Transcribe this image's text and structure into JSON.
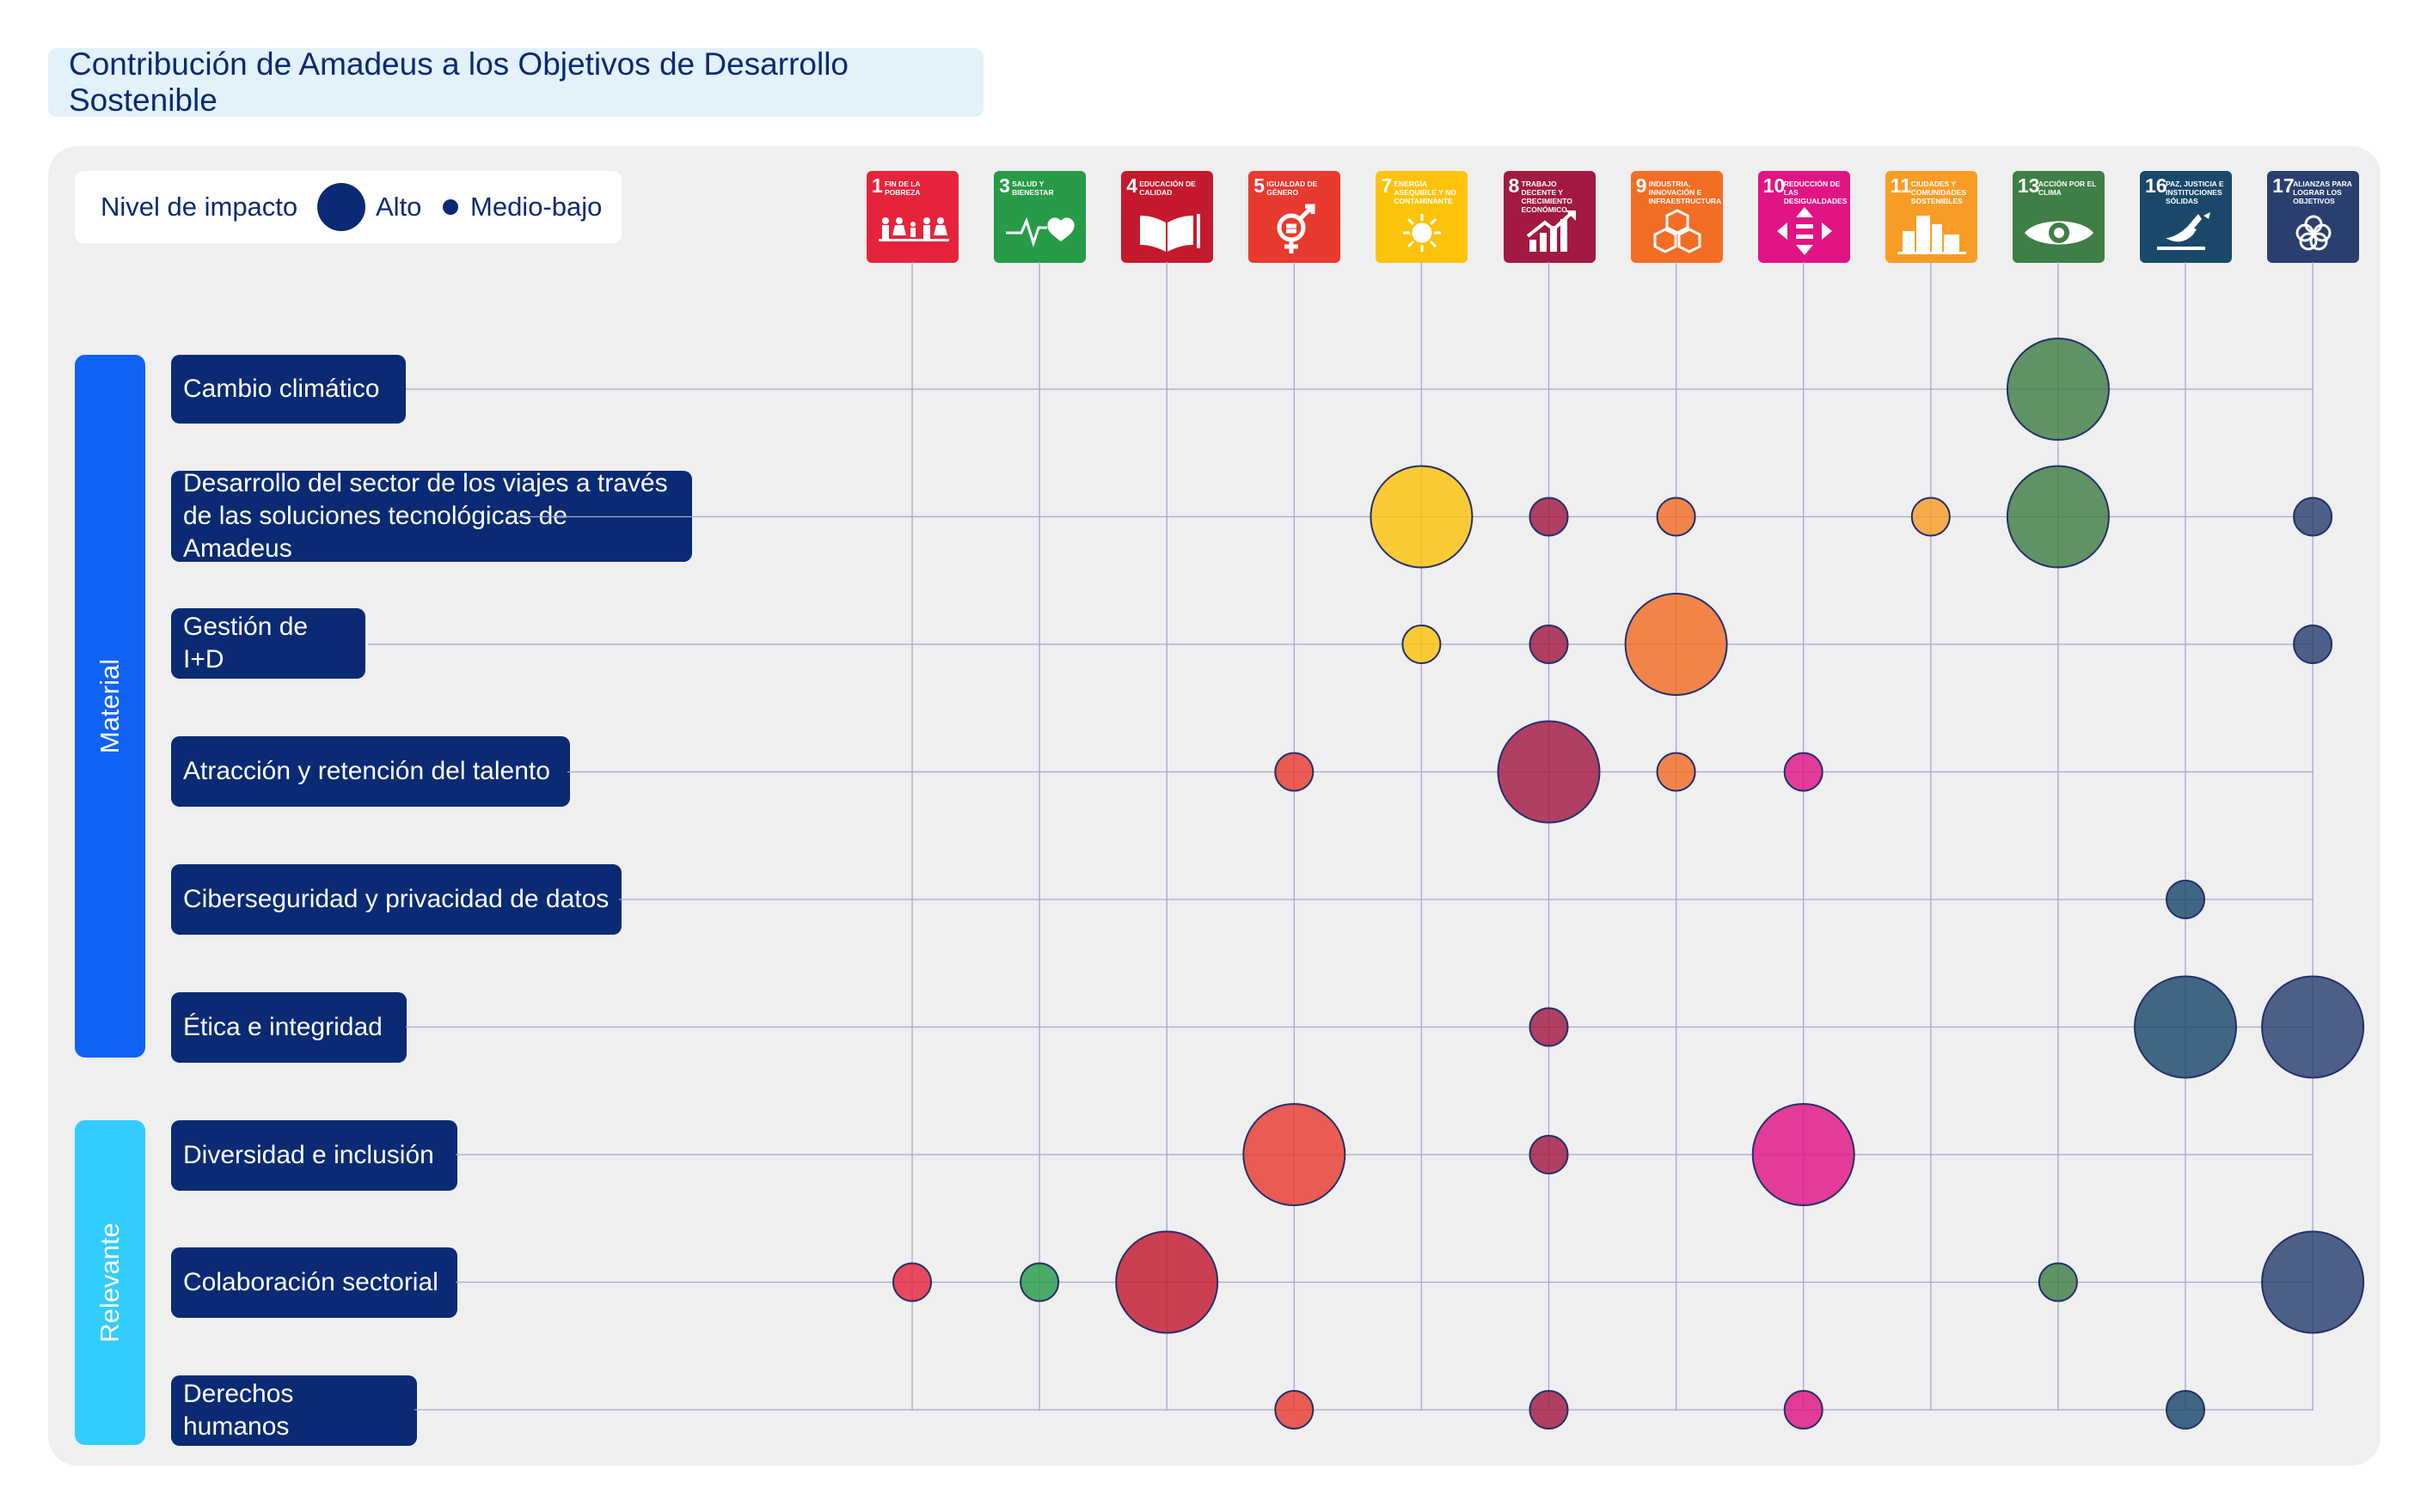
{
  "title": "Contribución de Amadeus a los Objetivos de Desarrollo Sostenible",
  "legend": {
    "label": "Nivel de impacto",
    "high": "Alto",
    "low": "Medio-bajo"
  },
  "groups": [
    {
      "label": "Material",
      "color": "#0f62f5"
    },
    {
      "label": "Relevante",
      "color": "#33ccff"
    }
  ],
  "colors": {
    "title_bg": "#e3f1fb",
    "panel_bg": "#efeff0",
    "navy": "#0a2a73",
    "grid": "#a3a9c8"
  },
  "chart_data": {
    "type": "bubble-matrix",
    "title": "Contribución de Amadeus a los Objetivos de Desarrollo Sostenible",
    "legend_title": "Nivel de impacto",
    "levels": [
      "Alto",
      "Medio-bajo"
    ],
    "columns": [
      {
        "num": "1",
        "title": "Fin de la pobreza",
        "color": "#e5243b",
        "icon": "family-icon"
      },
      {
        "num": "3",
        "title": "Salud y bienestar",
        "color": "#279b48",
        "icon": "heartbeat-icon"
      },
      {
        "num": "4",
        "title": "Educación de calidad",
        "color": "#c5192d",
        "icon": "book-icon"
      },
      {
        "num": "5",
        "title": "Igualdad de género",
        "color": "#e83a2f",
        "icon": "gender-icon"
      },
      {
        "num": "7",
        "title": "Energía asequible y no contaminante",
        "color": "#fcc30b",
        "icon": "sun-icon"
      },
      {
        "num": "8",
        "title": "Trabajo decente y crecimiento económico",
        "color": "#a21942",
        "icon": "growth-chart-icon"
      },
      {
        "num": "9",
        "title": "Industria, innovación e infraestructura",
        "color": "#f36d25",
        "icon": "cubes-icon"
      },
      {
        "num": "10",
        "title": "Reducción de las desigualdades",
        "color": "#e11484",
        "icon": "equality-icon"
      },
      {
        "num": "11",
        "title": "Ciudades y comunidades sostenibles",
        "color": "#f99d26",
        "icon": "city-icon"
      },
      {
        "num": "13",
        "title": "Acción por el clima",
        "color": "#3f7e44",
        "icon": "eye-globe-icon"
      },
      {
        "num": "16",
        "title": "Paz, justicia e instituciones sólidas",
        "color": "#19486a",
        "icon": "dove-icon"
      },
      {
        "num": "17",
        "title": "Alianzas para lograr los objetivos",
        "color": "#2a3f6e",
        "icon": "rings-icon"
      }
    ],
    "rows": [
      {
        "label": "Cambio climático",
        "group": "Material",
        "values": {
          "13": "Alto"
        }
      },
      {
        "label": "Desarrollo del sector de los viajes a través de las soluciones tecnológicas de Amadeus",
        "group": "Material",
        "values": {
          "7": "Alto",
          "8": "Medio-bajo",
          "9": "Medio-bajo",
          "11": "Medio-bajo",
          "13": "Alto",
          "17": "Medio-bajo"
        }
      },
      {
        "label": "Gestión de I+D",
        "group": "Material",
        "values": {
          "7": "Medio-bajo",
          "8": "Medio-bajo",
          "9": "Alto",
          "17": "Medio-bajo"
        }
      },
      {
        "label": "Atracción y retención del talento",
        "group": "Material",
        "values": {
          "5": "Medio-bajo",
          "8": "Alto",
          "9": "Medio-bajo",
          "10": "Medio-bajo"
        }
      },
      {
        "label": "Ciberseguridad y privacidad de datos",
        "group": "Material",
        "values": {
          "16": "Medio-bajo"
        }
      },
      {
        "label": "Ética e integridad",
        "group": "Material",
        "values": {
          "8": "Medio-bajo",
          "16": "Alto",
          "17": "Alto"
        }
      },
      {
        "label": "Diversidad e inclusión",
        "group": "Relevante",
        "values": {
          "5": "Alto",
          "8": "Medio-bajo",
          "10": "Alto"
        }
      },
      {
        "label": "Colaboración sectorial",
        "group": "Relevante",
        "values": {
          "1": "Medio-bajo",
          "3": "Medio-bajo",
          "4": "Alto",
          "13": "Medio-bajo",
          "17": "Alto"
        }
      },
      {
        "label": "Derechos humanos",
        "group": "Relevante",
        "values": {
          "5": "Medio-bajo",
          "8": "Medio-bajo",
          "10": "Medio-bajo",
          "16": "Medio-bajo"
        }
      }
    ]
  }
}
